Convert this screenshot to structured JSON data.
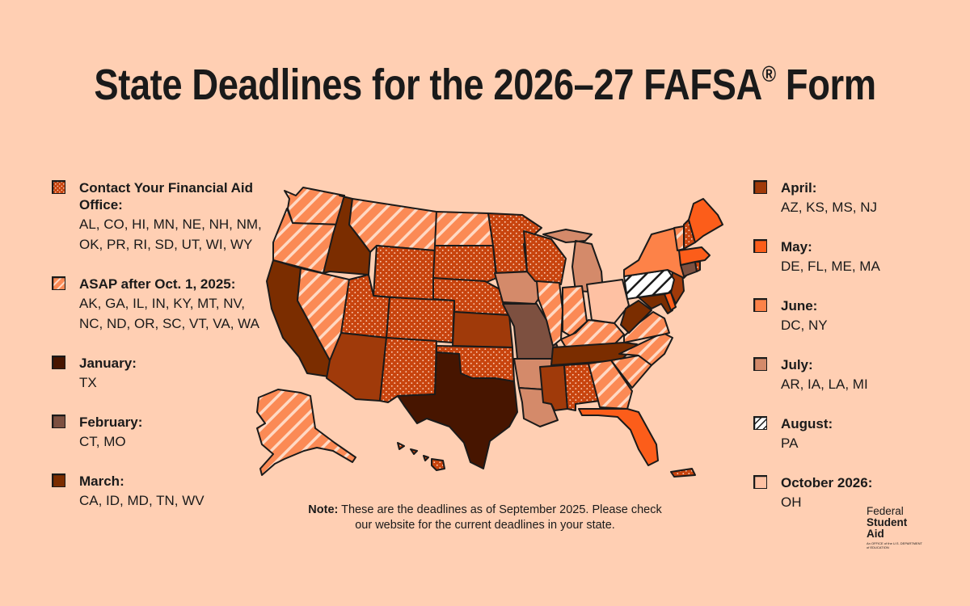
{
  "title": "State Deadlines for the 2026–27 FAFSA",
  "title_mark": "®",
  "title_suffix": "Form",
  "colors": {
    "background": "#ffcfb3",
    "dots": "#c8440e",
    "asap": "#fb8a55",
    "january": "#471500",
    "february": "#7d5040",
    "march": "#7b2d00",
    "april": "#a03a0a",
    "may": "#fc5d1a",
    "june": "#fd8248",
    "july": "#d48a6a",
    "august": "#ffffff",
    "october": "#fec1a3"
  },
  "legend_left": [
    {
      "key": "dots",
      "pattern": "dots",
      "label": "Contact Your Financial Aid Office:",
      "states": "AL, CO, HI, MN, NE, NH, NM, OK, PR, RI, SD, UT, WI, WY"
    },
    {
      "key": "asap",
      "pattern": "stripes",
      "label": "ASAP after Oct. 1, 2025:",
      "states": "AK, GA, IL, IN, KY, MT, NV, NC, ND, OR, SC, VT, VA, WA"
    },
    {
      "key": "january",
      "pattern": "solid",
      "label": "January:",
      "states": "TX"
    },
    {
      "key": "february",
      "pattern": "solid",
      "label": "February:",
      "states": "CT, MO"
    },
    {
      "key": "march",
      "pattern": "solid",
      "label": "March:",
      "states": "CA, ID, MD, TN, WV"
    }
  ],
  "legend_right": [
    {
      "key": "april",
      "pattern": "solid",
      "label": "April:",
      "states": "AZ, KS, MS, NJ"
    },
    {
      "key": "may",
      "pattern": "solid",
      "label": "May:",
      "states": "DE, FL, ME, MA"
    },
    {
      "key": "june",
      "pattern": "solid",
      "label": "June:",
      "states": "DC, NY"
    },
    {
      "key": "july",
      "pattern": "solid",
      "label": "July:",
      "states": "AR, IA, LA, MI"
    },
    {
      "key": "august",
      "pattern": "hatch",
      "label": "August:",
      "states": "PA"
    },
    {
      "key": "october",
      "pattern": "solid",
      "label": "October 2026:",
      "states": "OH"
    }
  ],
  "note": {
    "bold": "Note:",
    "text": "These are the deadlines as of September 2025. Please check our website for the current deadlines in your state."
  },
  "logo": {
    "line1": "Federal",
    "line2": "Student",
    "line3": "Aid",
    "tagline": "An OFFICE of the U.S. DEPARTMENT of EDUCATION"
  },
  "states": [
    {
      "code": "WA",
      "cat": "asap"
    },
    {
      "code": "OR",
      "cat": "asap"
    },
    {
      "code": "CA",
      "cat": "march"
    },
    {
      "code": "NV",
      "cat": "asap"
    },
    {
      "code": "ID",
      "cat": "march"
    },
    {
      "code": "MT",
      "cat": "asap"
    },
    {
      "code": "WY",
      "cat": "dots"
    },
    {
      "code": "UT",
      "cat": "dots"
    },
    {
      "code": "AZ",
      "cat": "april"
    },
    {
      "code": "CO",
      "cat": "dots"
    },
    {
      "code": "NM",
      "cat": "dots"
    },
    {
      "code": "ND",
      "cat": "asap"
    },
    {
      "code": "SD",
      "cat": "dots"
    },
    {
      "code": "NE",
      "cat": "dots"
    },
    {
      "code": "KS",
      "cat": "april"
    },
    {
      "code": "OK",
      "cat": "dots"
    },
    {
      "code": "TX",
      "cat": "january"
    },
    {
      "code": "MN",
      "cat": "dots"
    },
    {
      "code": "IA",
      "cat": "july"
    },
    {
      "code": "MO",
      "cat": "february"
    },
    {
      "code": "AR",
      "cat": "july"
    },
    {
      "code": "LA",
      "cat": "july"
    },
    {
      "code": "WI",
      "cat": "dots"
    },
    {
      "code": "IL",
      "cat": "asap"
    },
    {
      "code": "MI",
      "cat": "july"
    },
    {
      "code": "IN",
      "cat": "asap"
    },
    {
      "code": "OH",
      "cat": "october"
    },
    {
      "code": "KY",
      "cat": "asap"
    },
    {
      "code": "TN",
      "cat": "march"
    },
    {
      "code": "MS",
      "cat": "april"
    },
    {
      "code": "AL",
      "cat": "dots"
    },
    {
      "code": "GA",
      "cat": "asap"
    },
    {
      "code": "FL",
      "cat": "may"
    },
    {
      "code": "SC",
      "cat": "asap"
    },
    {
      "code": "NC",
      "cat": "asap"
    },
    {
      "code": "VA",
      "cat": "asap"
    },
    {
      "code": "WV",
      "cat": "march"
    },
    {
      "code": "MD",
      "cat": "march"
    },
    {
      "code": "DE",
      "cat": "may"
    },
    {
      "code": "NJ",
      "cat": "april"
    },
    {
      "code": "PA",
      "cat": "august"
    },
    {
      "code": "NY",
      "cat": "june"
    },
    {
      "code": "CT",
      "cat": "february"
    },
    {
      "code": "RI",
      "cat": "dots"
    },
    {
      "code": "MA",
      "cat": "may"
    },
    {
      "code": "VT",
      "cat": "asap"
    },
    {
      "code": "NH",
      "cat": "dots"
    },
    {
      "code": "ME",
      "cat": "may"
    },
    {
      "code": "AK",
      "cat": "asap"
    },
    {
      "code": "HI",
      "cat": "dots"
    },
    {
      "code": "PR",
      "cat": "dots"
    }
  ]
}
